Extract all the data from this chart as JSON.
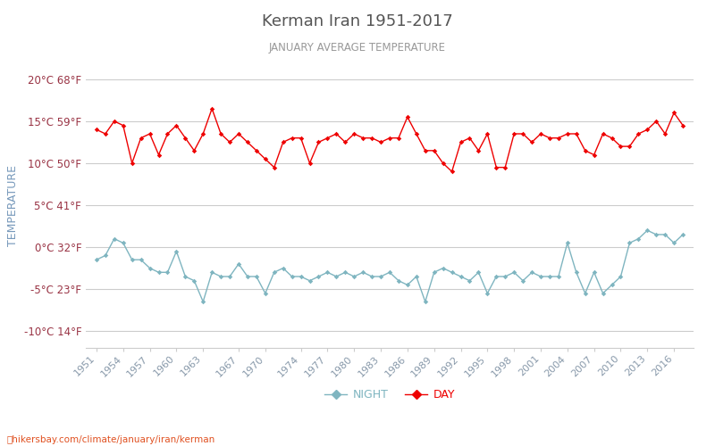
{
  "title": "Kerman Iran 1951-2017",
  "subtitle": "JANUARY AVERAGE TEMPERATURE",
  "ylabel": "TEMPERATURE",
  "background_color": "#ffffff",
  "plot_bg_color": "#ffffff",
  "grid_color": "#cccccc",
  "title_color": "#555555",
  "subtitle_color": "#999999",
  "ylabel_color": "#7799bb",
  "ytick_color": "#993344",
  "xtick_color": "#8899aa",
  "day_color": "#ee0000",
  "night_color": "#7fb5c0",
  "watermark": "hikersbay.com/climate/january/iran/kerman",
  "watermark_color": "#e05020",
  "ylim": [
    -12,
    22
  ],
  "yticks_c": [
    20,
    15,
    10,
    5,
    0,
    -5,
    -10
  ],
  "ytick_labels": [
    "20°C 68°F",
    "15°C 59°F",
    "10°C 50°F",
    "5°C 41°F",
    "0°C 32°F",
    "-5°C 23°F",
    "-10°C 14°F"
  ],
  "xtick_years": [
    1951,
    1954,
    1957,
    1960,
    1963,
    1967,
    1970,
    1974,
    1977,
    1980,
    1983,
    1986,
    1989,
    1992,
    1995,
    1998,
    2001,
    2004,
    2007,
    2010,
    2013,
    2016
  ],
  "years": [
    1951,
    1952,
    1953,
    1954,
    1955,
    1956,
    1957,
    1958,
    1959,
    1960,
    1961,
    1962,
    1963,
    1964,
    1965,
    1966,
    1967,
    1968,
    1969,
    1970,
    1971,
    1972,
    1973,
    1974,
    1975,
    1976,
    1977,
    1978,
    1979,
    1980,
    1981,
    1982,
    1983,
    1984,
    1985,
    1986,
    1987,
    1988,
    1989,
    1990,
    1991,
    1992,
    1993,
    1994,
    1995,
    1996,
    1997,
    1998,
    1999,
    2000,
    2001,
    2002,
    2003,
    2004,
    2005,
    2006,
    2007,
    2008,
    2009,
    2010,
    2011,
    2012,
    2013,
    2014,
    2015,
    2016,
    2017
  ],
  "day_temps": [
    14.0,
    13.5,
    15.0,
    14.5,
    10.0,
    13.0,
    13.5,
    11.0,
    13.5,
    14.5,
    13.0,
    11.5,
    13.5,
    16.5,
    13.5,
    12.5,
    13.5,
    12.5,
    11.5,
    10.5,
    9.5,
    12.5,
    13.0,
    13.0,
    10.0,
    12.5,
    13.0,
    13.5,
    12.5,
    13.5,
    13.0,
    13.0,
    12.5,
    13.0,
    13.0,
    15.5,
    13.5,
    11.5,
    11.5,
    10.0,
    9.0,
    12.5,
    13.0,
    11.5,
    13.5,
    9.5,
    9.5,
    13.5,
    13.5,
    12.5,
    13.5,
    13.0,
    13.0,
    13.5,
    13.5,
    11.5,
    11.0,
    13.5,
    13.0,
    12.0,
    12.0,
    13.5,
    14.0,
    15.0,
    13.5,
    16.0,
    14.5
  ],
  "night_temps": [
    -1.5,
    -1.0,
    1.0,
    0.5,
    -1.5,
    -1.5,
    -2.5,
    -3.0,
    -3.0,
    -0.5,
    -3.5,
    -4.0,
    -6.5,
    -3.0,
    -3.5,
    -3.5,
    -2.0,
    -3.5,
    -3.5,
    -5.5,
    -3.0,
    -2.5,
    -3.5,
    -3.5,
    -4.0,
    -3.5,
    -3.0,
    -3.5,
    -3.0,
    -3.5,
    -3.0,
    -3.5,
    -3.5,
    -3.0,
    -4.0,
    -4.5,
    -3.5,
    -6.5,
    -3.0,
    -2.5,
    -3.0,
    -3.5,
    -4.0,
    -3.0,
    -5.5,
    -3.5,
    -3.5,
    -3.0,
    -4.0,
    -3.0,
    -3.5,
    -3.5,
    -3.5,
    0.5,
    -3.0,
    -5.5,
    -3.0,
    -5.5,
    -4.5,
    -3.5,
    0.5,
    1.0,
    2.0,
    1.5,
    1.5,
    0.5,
    1.5
  ]
}
